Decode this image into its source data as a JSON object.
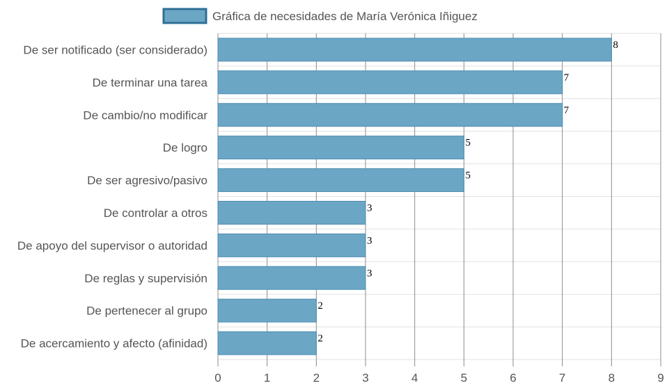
{
  "colors": {
    "bar_fill": "#6ba7c5",
    "bar_stroke": "#4c8ab0",
    "legend_border": "#2f6f96",
    "grid_major": "#8c8c8c",
    "grid_minor": "#e2e2e2",
    "text": "#555555"
  },
  "chart_data": {
    "type": "bar",
    "orientation": "horizontal",
    "categories": [
      "De ser notificado (ser considerado)",
      "De terminar una tarea",
      "De cambio/no modificar",
      "De logro",
      "De ser agresivo/pasivo",
      "De controlar a otros",
      "De apoyo del supervisor o autoridad",
      "De reglas y supervisión",
      "De pertenecer al grupo",
      "De acercamiento y afecto (afinidad)"
    ],
    "series": [
      {
        "name": "Gráfica de necesidades de María Verónica Iñiguez",
        "values": [
          8,
          7,
          7,
          5,
          5,
          3,
          3,
          3,
          2,
          2
        ]
      }
    ],
    "xlim": [
      0,
      9
    ],
    "xticks": [
      "0",
      "1",
      "2",
      "3",
      "4",
      "5",
      "6",
      "7",
      "8",
      "9"
    ],
    "grid": true,
    "legend": "top-center",
    "data_labels": true
  }
}
